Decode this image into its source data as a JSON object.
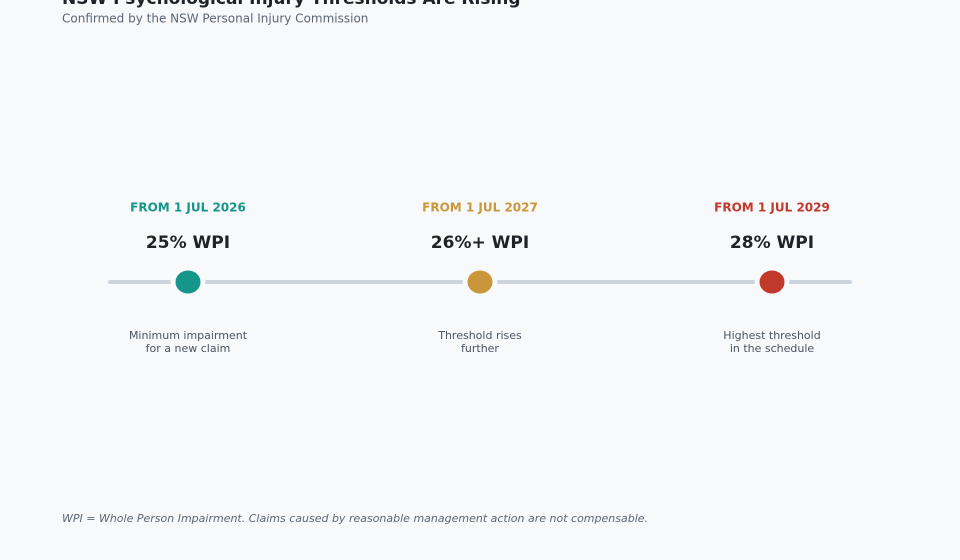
{
  "header": {
    "title": "NSW Psychological Injury Thresholds Are Rising",
    "subtitle": "Confirmed by the NSW Personal Injury Commission"
  },
  "milestones": [
    {
      "date": "FROM 1 JUL 2026",
      "threshold": "25% WPI",
      "description": [
        "Minimum impairment",
        "for a new claim"
      ],
      "color": "#16968a"
    },
    {
      "date": "FROM 1 JUL 2027",
      "threshold": "26%+ WPI",
      "description": [
        "Threshold rises",
        "further"
      ],
      "color": "#c9963a"
    },
    {
      "date": "FROM 1 JUL 2029",
      "threshold": "28% WPI",
      "description": [
        "Highest threshold",
        "in the schedule"
      ],
      "color": "#c0392b"
    }
  ],
  "footnote": "WPI = Whole Person Impairment. Claims caused by reasonable management action are not compensable."
}
